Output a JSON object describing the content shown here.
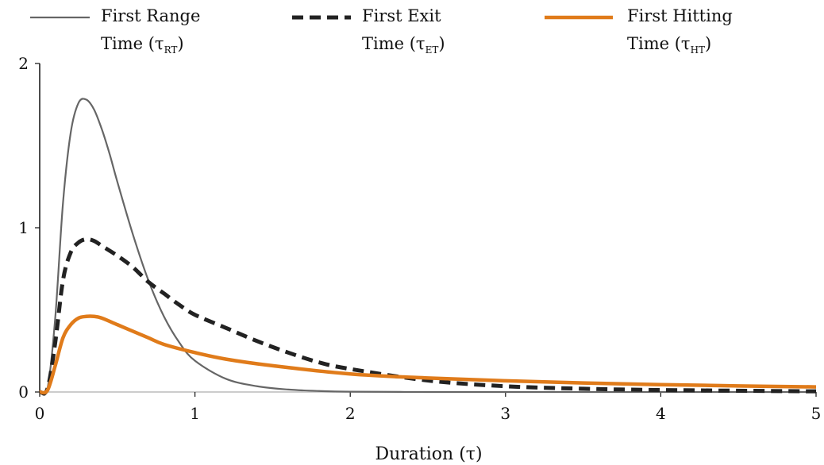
{
  "chart_data": {
    "type": "line",
    "title": "",
    "xlabel": "Duration (τ)",
    "ylabel": "",
    "xlim": [
      0,
      5
    ],
    "ylim": [
      0,
      2
    ],
    "x_ticks": [
      "0",
      "1",
      "2",
      "3",
      "4",
      "5"
    ],
    "y_ticks": [
      "0",
      "1",
      "2"
    ],
    "grid": false,
    "legend_position": "top",
    "series": [
      {
        "name": "First Range Time (τRT)",
        "legend_line1": "First Range",
        "legend_line2_prefix": "Time (τ",
        "legend_sub": "RT",
        "legend_line2_suffix": ")",
        "color": "#666666",
        "style": "solid",
        "x": [
          0,
          0.05,
          0.1,
          0.15,
          0.2,
          0.25,
          0.3,
          0.35,
          0.4,
          0.45,
          0.5,
          0.6,
          0.7,
          0.8,
          0.9,
          1.0,
          1.2,
          1.4,
          1.6,
          1.8,
          2.0,
          2.5,
          3.0,
          4.0,
          5.0
        ],
        "y": [
          0,
          0.02,
          0.45,
          1.15,
          1.58,
          1.76,
          1.78,
          1.72,
          1.6,
          1.45,
          1.28,
          0.96,
          0.68,
          0.46,
          0.3,
          0.19,
          0.08,
          0.035,
          0.015,
          0.006,
          0.002,
          0,
          0,
          0,
          0
        ]
      },
      {
        "name": "First Exit Time (τET)",
        "legend_line1": "First Exit",
        "legend_line2_prefix": "Time (τ",
        "legend_sub": "ET",
        "legend_line2_suffix": ")",
        "color": "#222222",
        "style": "dashed",
        "x": [
          0,
          0.05,
          0.1,
          0.15,
          0.2,
          0.25,
          0.3,
          0.35,
          0.4,
          0.5,
          0.6,
          0.7,
          0.8,
          0.9,
          1.0,
          1.2,
          1.4,
          1.6,
          1.8,
          2.0,
          2.5,
          3.0,
          3.5,
          4.0,
          5.0
        ],
        "y": [
          0,
          0.02,
          0.3,
          0.68,
          0.85,
          0.91,
          0.93,
          0.92,
          0.89,
          0.83,
          0.76,
          0.67,
          0.6,
          0.53,
          0.47,
          0.39,
          0.31,
          0.24,
          0.18,
          0.14,
          0.07,
          0.035,
          0.02,
          0.012,
          0.004
        ]
      },
      {
        "name": "First Hitting Time (τHT)",
        "legend_line1": "First Hitting",
        "legend_line2_prefix": "Time (τ",
        "legend_sub": "HT",
        "legend_line2_suffix": ")",
        "color": "#e07b1a",
        "style": "solid",
        "x": [
          0,
          0.05,
          0.1,
          0.15,
          0.2,
          0.25,
          0.3,
          0.35,
          0.4,
          0.5,
          0.6,
          0.7,
          0.8,
          1.0,
          1.2,
          1.5,
          2.0,
          2.5,
          3.0,
          3.5,
          4.0,
          4.5,
          5.0
        ],
        "y": [
          0,
          0.01,
          0.16,
          0.33,
          0.41,
          0.45,
          0.46,
          0.46,
          0.45,
          0.41,
          0.37,
          0.33,
          0.29,
          0.24,
          0.2,
          0.16,
          0.11,
          0.085,
          0.068,
          0.055,
          0.045,
          0.037,
          0.031
        ]
      }
    ]
  }
}
